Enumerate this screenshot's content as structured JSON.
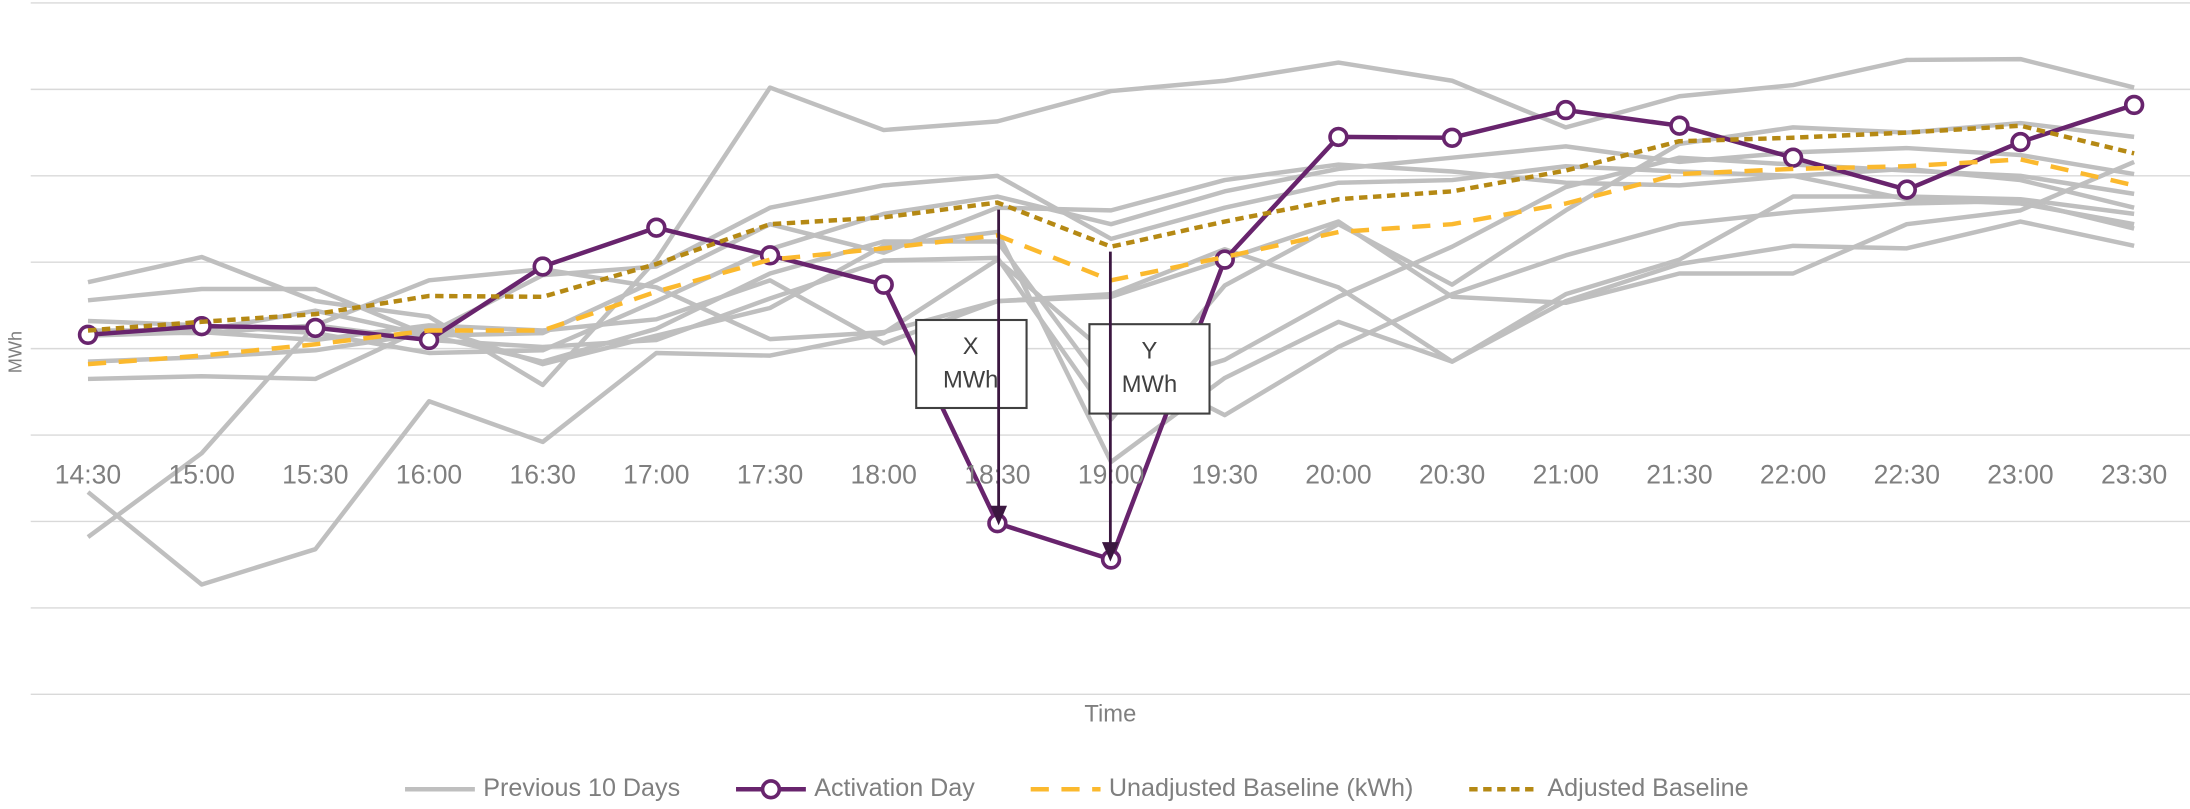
{
  "chart_data": {
    "type": "line",
    "x_label": "Time",
    "y_label": "MWh",
    "categories": [
      "14:30",
      "15:00",
      "15:30",
      "16:00",
      "16:30",
      "17:00",
      "17:30",
      "18:00",
      "18:30",
      "19:00",
      "19:30",
      "20:00",
      "20:30",
      "21:00",
      "21:30",
      "22:00",
      "22:30",
      "23:00",
      "23:30"
    ],
    "ylim": [
      0,
      8
    ],
    "yticks": [
      0,
      1,
      2,
      3,
      4,
      5,
      6,
      7,
      8
    ],
    "grid": true,
    "legend": "bottom",
    "series": [
      {
        "name": "Previous 10 Days",
        "color": "#bfbfbf",
        "line_style": "solid",
        "values": [
          [
            4.77,
            5.06,
            4.55,
            4.37,
            3.58,
            5.03,
            7.02,
            6.53,
            6.63,
            6.98,
            7.1,
            7.31,
            7.1,
            6.56,
            6.92,
            7.05,
            7.34,
            7.35,
            7.02
          ],
          [
            1.82,
            2.79,
            4.27,
            4.1,
            4.02,
            4.1,
            4.58,
            5.02,
            5.05,
            3.18,
            4.73,
            5.44,
            4.74,
            5.6,
            6.37,
            6.56,
            6.5,
            6.61,
            6.45
          ],
          [
            2.34,
            1.27,
            1.68,
            3.39,
            2.92,
            3.95,
            3.92,
            4.18,
            5.03,
            3.9,
            3.23,
            4.02,
            4.63,
            5.08,
            5.44,
            5.58,
            5.68,
            5.71,
            5.39
          ],
          [
            3.65,
            3.68,
            3.65,
            4.26,
            3.82,
            4.15,
            4.47,
            5.19,
            5.35,
            2.69,
            3.66,
            4.31,
            3.85,
            4.55,
            4.98,
            5.19,
            5.16,
            5.47,
            5.19
          ],
          [
            4.56,
            4.69,
            4.69,
            4.15,
            3.85,
            4.23,
            4.87,
            5.24,
            5.24,
            3.47,
            3.87,
            4.6,
            5.18,
            5.87,
            6.21,
            6.13,
            6.06,
            6.0,
            5.79
          ],
          [
            4.32,
            4.27,
            4.18,
            3.95,
            3.98,
            4.55,
            5.15,
            5.56,
            5.76,
            5.44,
            5.82,
            6.08,
            6.21,
            6.34,
            6.16,
            6.27,
            6.32,
            6.24,
            6.02
          ],
          [
            3.85,
            3.9,
            3.98,
            4.18,
            4.85,
            4.95,
            5.63,
            5.89,
            6.0,
            5.27,
            5.63,
            5.92,
            5.95,
            6.11,
            6.05,
            6.0,
            5.73,
            5.68,
            5.44
          ],
          [
            4.19,
            4.18,
            4.27,
            4.79,
            4.92,
            4.71,
            4.11,
            4.19,
            4.55,
            4.63,
            5.15,
            4.71,
            3.85,
            4.63,
            5.03,
            5.76,
            5.76,
            5.73,
            5.56
          ],
          [
            4.21,
            4.21,
            4.44,
            4.15,
            4.18,
            4.79,
            5.44,
            5.11,
            5.63,
            5.6,
            5.95,
            6.13,
            6.05,
            5.92,
            5.89,
            6.0,
            6.08,
            5.95,
            5.63
          ],
          [
            4.15,
            4.19,
            4.1,
            4.27,
            4.21,
            4.34,
            4.79,
            4.06,
            4.55,
            4.6,
            5.03,
            5.47,
            4.6,
            4.53,
            4.87,
            4.87,
            5.44,
            5.6,
            6.16
          ]
        ]
      },
      {
        "name": "Activation Day",
        "color": "#68246d",
        "line_style": "solid",
        "markers": true,
        "values": [
          4.16,
          4.26,
          4.24,
          4.1,
          4.95,
          5.4,
          5.08,
          4.74,
          1.98,
          1.56,
          5.03,
          6.45,
          6.44,
          6.76,
          6.58,
          6.21,
          5.84,
          6.39,
          6.82
        ]
      },
      {
        "name": "Unadjusted Baseline (kWh)",
        "color": "#fbb92e",
        "line_style": "dashed",
        "values": [
          3.82,
          3.92,
          4.05,
          4.21,
          4.21,
          4.66,
          5.03,
          5.16,
          5.31,
          4.79,
          5.06,
          5.35,
          5.44,
          5.68,
          6.02,
          6.08,
          6.11,
          6.19,
          5.89
        ]
      },
      {
        "name": "Adjusted Baseline",
        "color": "#b58914",
        "line_style": "dotted",
        "values": [
          4.21,
          4.31,
          4.4,
          4.61,
          4.6,
          4.98,
          5.44,
          5.52,
          5.69,
          5.18,
          5.47,
          5.73,
          5.82,
          6.06,
          6.4,
          6.44,
          6.5,
          6.58,
          6.26
        ]
      }
    ],
    "annotations": [
      {
        "text": [
          "X",
          "MWh"
        ]
      },
      {
        "text": [
          "Y",
          "MWh"
        ]
      }
    ]
  }
}
